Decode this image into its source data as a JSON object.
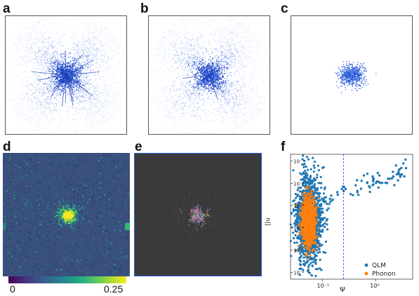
{
  "figure": {
    "panels": [
      {
        "label": "a",
        "description_visual": "sparse blue displacement field with four-lobed pattern and long streaks"
      },
      {
        "label": "b",
        "description_visual": "sparse blue displacement field with four-lobed pattern"
      },
      {
        "label": "c",
        "description_visual": "localized blue cluster at center"
      },
      {
        "label": "d",
        "description_visual": "viridis colormap field with bright yellow core"
      },
      {
        "label": "e",
        "description_visual": "dark gray field with faint colored vectors at center"
      },
      {
        "label": "f",
        "description_visual": "log-log scatter of QLM vs Phonon"
      }
    ],
    "colorbar": {
      "min_label": "0",
      "max_label": "0.25",
      "colormap": "viridis"
    }
  },
  "chart_data": {
    "type": "scatter",
    "xlabel": "Ψ",
    "ylabel": "||u",
    "xscale": "log",
    "yscale": "log",
    "xlim": [
      0.025,
      5
    ],
    "ylim": [
      5e-07,
      0.2
    ],
    "x_tick_labels": [
      "10⁻¹",
      "10⁰"
    ],
    "y_tick_labels": [
      "10⁻¹",
      "10⁻²",
      "10⁻³",
      "10⁻⁴",
      "10⁻⁵",
      "10⁻⁶"
    ],
    "vline_x": 0.25,
    "legend_position": "lower-right",
    "series": [
      {
        "name": "QLM",
        "color": "#1f77b4"
      },
      {
        "name": "Phonon",
        "color": "#ff7f0e"
      }
    ]
  },
  "colors": {
    "blue": "#2a5bd7",
    "orange": "#ff7f0e",
    "dark_bg": "#3a3a3a",
    "viridis_bg": "#3b4f7c"
  }
}
